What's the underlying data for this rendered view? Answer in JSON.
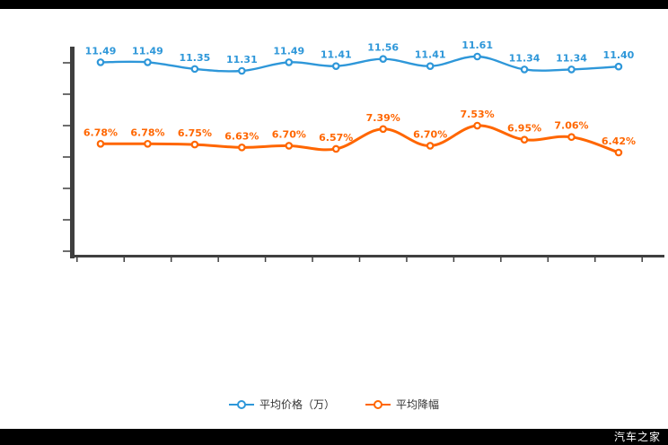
{
  "watermark": {
    "text": "汽车之家"
  },
  "legend": {
    "items": [
      {
        "label": "平均价格（万）",
        "color": "#2E97D9"
      },
      {
        "label": "平均降幅",
        "color": "#FF6600"
      }
    ]
  },
  "chart_data": {
    "type": "line",
    "title": "",
    "xlabel": "",
    "ylabel": "",
    "grid": false,
    "legend_position": "bottom",
    "x_axis_tick_labels_visible": false,
    "y_axis_tick_labels_visible": false,
    "point_count": 12,
    "series": [
      {
        "name": "平均价格（万）",
        "color": "#2E97D9",
        "values": [
          11.49,
          11.49,
          11.35,
          11.31,
          11.49,
          11.41,
          11.56,
          11.41,
          11.61,
          11.34,
          11.34,
          11.4
        ],
        "labels": [
          "11.49",
          "11.49",
          "11.35",
          "11.31",
          "11.49",
          "11.41",
          "11.56",
          "11.41",
          "11.61",
          "11.34",
          "11.34",
          "11.40"
        ]
      },
      {
        "name": "平均降幅",
        "color": "#FF6600",
        "values": [
          6.78,
          6.78,
          6.75,
          6.63,
          6.7,
          6.57,
          7.39,
          6.7,
          7.53,
          6.95,
          7.06,
          6.42
        ],
        "labels": [
          "6.78%",
          "6.78%",
          "6.75%",
          "6.63%",
          "6.70%",
          "6.57%",
          "7.39%",
          "6.70%",
          "7.53%",
          "6.95%",
          "7.06%",
          "6.42%"
        ]
      }
    ]
  }
}
